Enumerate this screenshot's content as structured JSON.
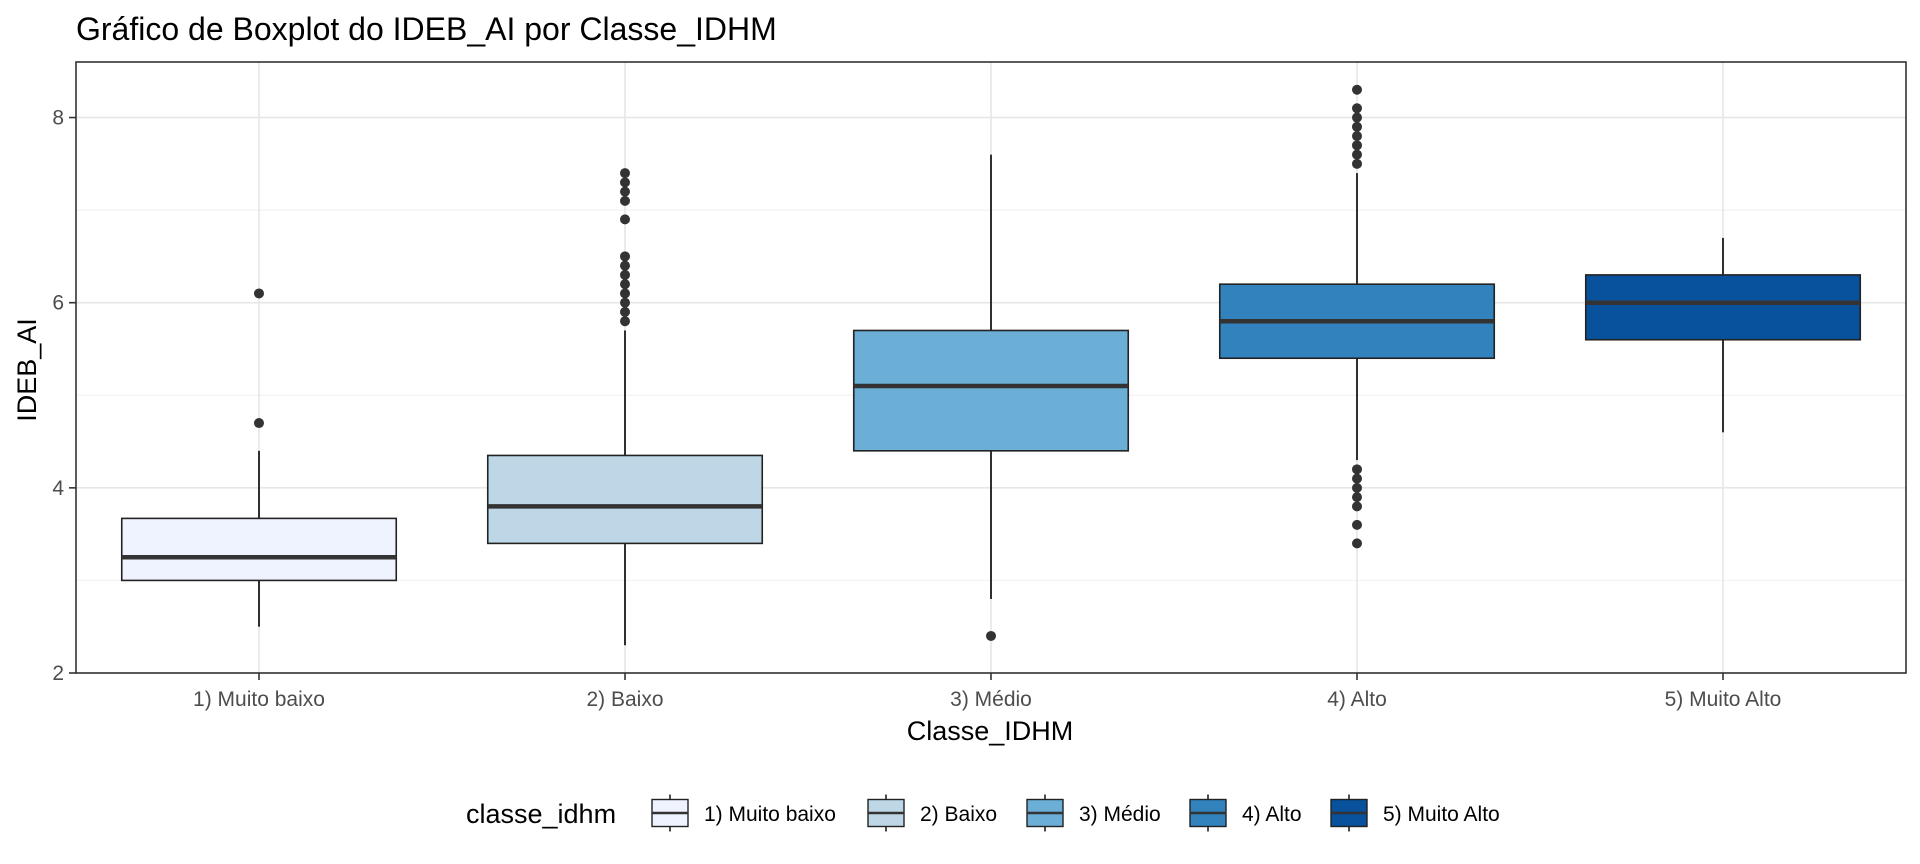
{
  "chart_data": {
    "type": "boxplot",
    "title": "Gráfico de Boxplot do IDEB_AI por Classe_IDHM",
    "xlabel": "Classe_IDHM",
    "ylabel": "IDEB_AI",
    "ylim": [
      2,
      8.6
    ],
    "yticks": [
      2,
      4,
      6,
      8
    ],
    "grid": true,
    "legend_title": "classe_idhm",
    "legend_position": "bottom",
    "categories": [
      "1) Muito baixo",
      "2) Baixo",
      "3) Médio",
      "4) Alto",
      "5) Muito Alto"
    ],
    "colors": [
      "#eff3ff",
      "#bdd7e7",
      "#6baed6",
      "#3182bd",
      "#08519c"
    ],
    "boxes": [
      {
        "category": "1) Muito baixo",
        "whisker_low": 2.5,
        "q1": 3.0,
        "median": 3.25,
        "q3": 3.67,
        "whisker_high": 4.4,
        "outliers": [
          4.7,
          6.1
        ]
      },
      {
        "category": "2) Baixo",
        "whisker_low": 2.3,
        "q1": 3.4,
        "median": 3.8,
        "q3": 4.35,
        "whisker_high": 5.7,
        "outliers": [
          5.8,
          5.9,
          6.0,
          6.1,
          6.2,
          6.3,
          6.4,
          6.5,
          6.9,
          7.1,
          7.2,
          7.3,
          7.4
        ]
      },
      {
        "category": "3) Médio",
        "whisker_low": 2.8,
        "q1": 4.4,
        "median": 5.1,
        "q3": 5.7,
        "whisker_high": 7.6,
        "outliers": [
          2.4
        ]
      },
      {
        "category": "4) Alto",
        "whisker_low": 4.3,
        "q1": 5.4,
        "median": 5.8,
        "q3": 6.2,
        "whisker_high": 7.4,
        "outliers": [
          3.4,
          3.6,
          3.8,
          3.9,
          4.0,
          4.1,
          4.2,
          7.5,
          7.6,
          7.7,
          7.8,
          7.9,
          8.0,
          8.1,
          8.3
        ]
      },
      {
        "category": "5) Muito Alto",
        "whisker_low": 4.6,
        "q1": 5.6,
        "median": 6.0,
        "q3": 6.3,
        "whisker_high": 6.7,
        "outliers": []
      }
    ]
  }
}
